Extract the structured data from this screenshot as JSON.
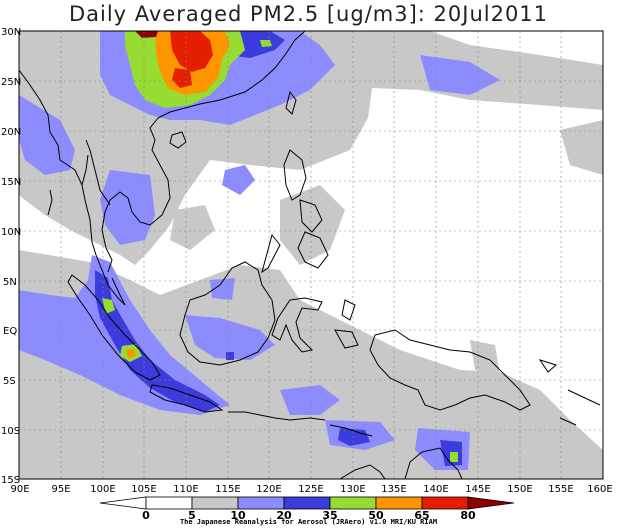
{
  "title": "Daily Averaged PM2.5 [ug/m3]: 20Jul2011",
  "credit": "The Japanese Reanalysis for Aerosol (JRAero) v1.0 MRI/KU RIAM",
  "lat_labels": [
    "30N",
    "25N",
    "20N",
    "15N",
    "10N",
    "5N",
    "EQ",
    "5S",
    "10S",
    "15S"
  ],
  "lon_labels": [
    "90E",
    "95E",
    "100E",
    "105E",
    "110E",
    "115E",
    "120E",
    "125E",
    "130E",
    "135E",
    "140E",
    "145E",
    "150E",
    "155E",
    "160E"
  ],
  "colorbar": {
    "levels": [
      "0",
      "5",
      "10",
      "20",
      "35",
      "50",
      "65",
      "80"
    ],
    "colors": [
      "#ffffff",
      "#ffffff",
      "#c8c8c8",
      "#8c8cff",
      "#3c3cdc",
      "#96dc32",
      "#ff9600",
      "#e61e00",
      "#8c0000"
    ]
  },
  "colors": {
    "gray": "#c8c8c8",
    "light_blue": "#8c8cff",
    "blue": "#3c3cdc",
    "green": "#96dc32",
    "orange": "#ff9600",
    "red": "#e61e00",
    "dark_red": "#8c0000"
  }
}
